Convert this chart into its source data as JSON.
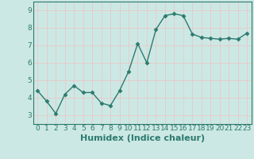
{
  "x": [
    0,
    1,
    2,
    3,
    4,
    5,
    6,
    7,
    8,
    9,
    10,
    11,
    12,
    13,
    14,
    15,
    16,
    17,
    18,
    19,
    20,
    21,
    22,
    23
  ],
  "y": [
    4.4,
    3.8,
    3.1,
    4.2,
    4.7,
    4.3,
    4.3,
    3.7,
    3.55,
    4.4,
    5.5,
    7.1,
    6.0,
    7.9,
    8.7,
    8.8,
    8.7,
    7.65,
    7.45,
    7.4,
    7.35,
    7.4,
    7.35,
    7.7
  ],
  "line_color": "#2d7a6e",
  "marker": "D",
  "marker_size": 2.5,
  "bg_color": "#cce8e4",
  "grid_color": "#e8c8c8",
  "xlabel": "Humidex (Indice chaleur)",
  "xlabel_fontsize": 8,
  "ylim": [
    2.5,
    9.5
  ],
  "xlim": [
    -0.5,
    23.5
  ],
  "yticks": [
    3,
    4,
    5,
    6,
    7,
    8,
    9
  ],
  "xticks": [
    0,
    1,
    2,
    3,
    4,
    5,
    6,
    7,
    8,
    9,
    10,
    11,
    12,
    13,
    14,
    15,
    16,
    17,
    18,
    19,
    20,
    21,
    22,
    23
  ],
  "tick_fontsize": 6.5,
  "line_width": 1.0,
  "spine_color": "#2d7a6e"
}
